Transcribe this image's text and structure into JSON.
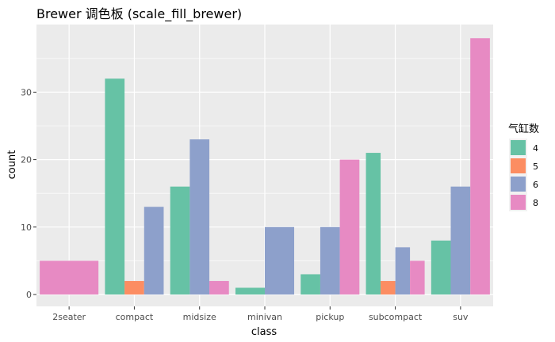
{
  "chart_data": {
    "type": "bar",
    "title": "Brewer 调色板 (scale_fill_brewer)",
    "xlabel": "class",
    "ylabel": "count",
    "ylim": [
      0,
      40
    ],
    "yticks": [
      0,
      10,
      20,
      30
    ],
    "grid": true,
    "legend_position": "right",
    "legend_title": "气缸数",
    "categories": [
      "2seater",
      "compact",
      "midsize",
      "minivan",
      "pickup",
      "subcompact",
      "suv"
    ],
    "series": [
      {
        "name": "4",
        "color": "#66C2A5",
        "values": [
          null,
          32,
          16,
          1,
          3,
          21,
          8
        ]
      },
      {
        "name": "5",
        "color": "#FC8D62",
        "values": [
          null,
          2,
          null,
          null,
          null,
          2,
          null
        ]
      },
      {
        "name": "6",
        "color": "#8DA0CB",
        "values": [
          null,
          13,
          23,
          10,
          10,
          7,
          16
        ]
      },
      {
        "name": "8",
        "color": "#E78AC3",
        "values": [
          5,
          null,
          2,
          null,
          20,
          5,
          38
        ]
      }
    ]
  }
}
